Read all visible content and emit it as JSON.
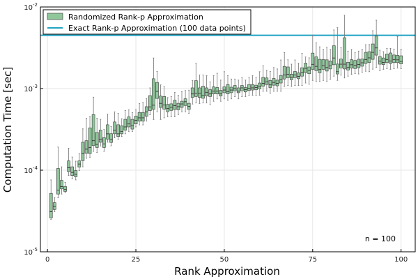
{
  "chart_data": {
    "type": "box",
    "xlabel": "Rank Approximation",
    "ylabel": "Computation Time [sec]",
    "xlim": [
      -2,
      104
    ],
    "ylim": [
      1e-05,
      0.01
    ],
    "yscale": "log",
    "grid": true,
    "x_ticks": [
      0,
      25,
      50,
      75,
      100
    ],
    "y_ticks": [
      {
        "value": 1e-05,
        "base": "10",
        "exp": "-5"
      },
      {
        "value": 0.0001,
        "base": "10",
        "exp": "-4"
      },
      {
        "value": 0.001,
        "base": "10",
        "exp": "-3"
      },
      {
        "value": 0.01,
        "base": "10",
        "exp": "-2"
      }
    ],
    "legend": {
      "placement": "top-left",
      "entries": [
        {
          "label": "Randomized Rank-p Approximation",
          "color": "#8fc79a",
          "kind": "box"
        },
        {
          "label": "Exact Rank-p Approximation (100 data points)",
          "color": "#1fa3c4",
          "kind": "line"
        }
      ]
    },
    "annotation": "n = 100",
    "exact_time": 0.0045,
    "series": [
      {
        "name": "Randomized Rank-p Approximation",
        "color": "#8fc79a",
        "x": [
          1,
          2,
          3,
          4,
          5,
          6,
          7,
          8,
          9,
          10,
          11,
          12,
          13,
          14,
          15,
          16,
          17,
          18,
          19,
          20,
          21,
          22,
          23,
          24,
          25,
          26,
          27,
          28,
          29,
          30,
          31,
          32,
          33,
          34,
          35,
          36,
          37,
          38,
          39,
          40,
          41,
          42,
          43,
          44,
          45,
          46,
          47,
          48,
          49,
          50,
          51,
          52,
          53,
          54,
          55,
          56,
          57,
          58,
          59,
          60,
          61,
          62,
          63,
          64,
          65,
          66,
          67,
          68,
          69,
          70,
          71,
          72,
          73,
          74,
          75,
          76,
          77,
          78,
          79,
          80,
          81,
          82,
          83,
          84,
          85,
          86,
          87,
          88,
          89,
          90,
          91,
          92,
          93,
          94,
          95,
          96,
          97,
          98,
          99,
          100
        ],
        "median": [
          3.1e-05,
          3.6e-05,
          5.7e-05,
          6.3e-05,
          5.8e-05,
          0.000107,
          9.4e-05,
          8.9e-05,
          0.000119,
          0.00016,
          0.000181,
          0.00019,
          0.00023,
          0.000207,
          0.00024,
          0.00021,
          0.000279,
          0.000239,
          0.000309,
          0.000279,
          0.000299,
          0.000339,
          0.000369,
          0.000349,
          0.000408,
          0.000438,
          0.000438,
          0.000518,
          0.000597,
          0.000626,
          0.000925,
          0.000659,
          0.000629,
          0.000569,
          0.00059,
          0.000617,
          0.0006,
          0.000648,
          0.00069,
          0.000604,
          0.00086,
          0.000878,
          0.00088,
          0.000821,
          0.0009,
          0.00086,
          0.00093,
          0.00093,
          0.00086,
          0.00096,
          0.00092,
          0.00096,
          0.001,
          0.00093,
          0.00102,
          0.00097,
          0.00101,
          0.00102,
          0.00103,
          0.00107,
          0.00116,
          0.00121,
          0.00111,
          0.00119,
          0.00116,
          0.00129,
          0.00147,
          0.0015,
          0.00137,
          0.00147,
          0.00141,
          0.00157,
          0.00177,
          0.00167,
          0.00198,
          0.00187,
          0.00171,
          0.00191,
          0.00181,
          0.0019,
          0.00237,
          0.00161,
          0.00199,
          0.00199,
          0.00181,
          0.00196,
          0.00192,
          0.00197,
          0.00207,
          0.00227,
          0.00238,
          0.00278,
          0.00315,
          0.00217,
          0.00209,
          0.00227,
          0.00218,
          0.00227,
          0.00225,
          0.00215
        ],
        "q1": [
          2.6e-05,
          3.3e-05,
          5.1e-05,
          5.9e-05,
          5.5e-05,
          9.6e-05,
          8.6e-05,
          8.3e-05,
          0.000109,
          0.000131,
          0.000161,
          0.00016,
          0.0002,
          0.00019,
          0.00022,
          0.00019,
          0.00024,
          0.000219,
          0.000279,
          0.000259,
          0.000279,
          0.000309,
          0.000339,
          0.000319,
          0.000369,
          0.000399,
          0.000399,
          0.000458,
          0.000538,
          0.000557,
          0.000757,
          0.000587,
          0.00056,
          0.00052,
          0.00054,
          0.000554,
          0.00055,
          0.000588,
          0.00062,
          0.000557,
          0.000778,
          0.0008,
          0.00078,
          0.00076,
          0.00081,
          0.0008,
          0.00086,
          0.00086,
          0.00081,
          0.00089,
          0.00086,
          0.00089,
          0.00094,
          0.00089,
          0.00094,
          0.00091,
          0.00095,
          0.00096,
          0.00097,
          0.00099,
          0.00107,
          0.00112,
          0.00103,
          0.0011,
          0.00108,
          0.00117,
          0.00131,
          0.00136,
          0.00128,
          0.00136,
          0.00132,
          0.00142,
          0.00157,
          0.00152,
          0.00172,
          0.00166,
          0.00156,
          0.00172,
          0.00164,
          0.00174,
          0.00196,
          0.00151,
          0.00179,
          0.00174,
          0.00169,
          0.00178,
          0.00176,
          0.0018,
          0.00188,
          0.00203,
          0.00209,
          0.00228,
          0.00257,
          0.00199,
          0.00197,
          0.00208,
          0.00203,
          0.00208,
          0.00208,
          0.00201
        ],
        "q3": [
          5.2e-05,
          4e-05,
          0.000105,
          7.5e-05,
          6.3e-05,
          0.00013,
          0.00011,
          9.9e-05,
          0.00013,
          0.00022,
          0.00023,
          0.00033,
          0.00048,
          0.00029,
          0.00031,
          0.00025,
          0.00036,
          0.00028,
          0.00039,
          0.00036,
          0.00035,
          0.00042,
          0.00045,
          0.00042,
          0.00046,
          0.00051,
          0.00051,
          0.0006,
          0.00082,
          0.00132,
          0.00119,
          0.00081,
          0.0008,
          0.00064,
          0.00065,
          0.00072,
          0.00066,
          0.0007,
          0.00075,
          0.00066,
          0.00102,
          0.00125,
          0.00102,
          0.00107,
          0.00102,
          0.00097,
          0.00105,
          0.00103,
          0.00095,
          0.00105,
          0.00112,
          0.00104,
          0.00109,
          0.00102,
          0.00109,
          0.00103,
          0.00112,
          0.00112,
          0.0011,
          0.00117,
          0.00137,
          0.00135,
          0.00126,
          0.00133,
          0.00127,
          0.00145,
          0.00187,
          0.00184,
          0.0015,
          0.00162,
          0.00156,
          0.0018,
          0.00205,
          0.00184,
          0.00272,
          0.00245,
          0.00228,
          0.00227,
          0.00225,
          0.00218,
          0.00335,
          0.002,
          0.0023,
          0.0042,
          0.0021,
          0.00226,
          0.00221,
          0.00229,
          0.0023,
          0.00278,
          0.00283,
          0.00352,
          0.0044,
          0.00247,
          0.00237,
          0.00265,
          0.00273,
          0.00258,
          0.00255,
          0.00252
        ],
        "whisker_low": [
          2.5e-05,
          3.1e-05,
          4.6e-05,
          5.1e-05,
          5.3e-05,
          8.6e-05,
          7.8e-05,
          7.6e-05,
          9.9e-05,
          0.00011,
          0.00014,
          0.000143,
          0.00017,
          0.000165,
          0.000198,
          0.00017,
          0.00022,
          0.000199,
          0.000249,
          0.000239,
          0.000259,
          0.000279,
          0.000299,
          0.000299,
          0.000339,
          0.000359,
          0.000359,
          0.000399,
          0.000478,
          0.000418,
          0.00052,
          0.000418,
          0.000438,
          0.00045,
          0.00045,
          0.00045,
          0.00048,
          0.000518,
          0.000518,
          0.000498,
          0.000646,
          0.000666,
          0.000656,
          0.000666,
          0.000666,
          0.000636,
          0.000699,
          0.000748,
          0.000699,
          0.000748,
          0.000717,
          0.000748,
          0.000798,
          0.000748,
          0.000798,
          0.000798,
          0.000828,
          0.000828,
          0.000828,
          0.000828,
          0.000927,
          0.000927,
          0.000877,
          0.000927,
          0.000927,
          0.000927,
          0.00106,
          0.00109,
          0.00106,
          0.00109,
          0.00109,
          0.00109,
          0.00117,
          0.00113,
          0.00126,
          0.00122,
          0.00122,
          0.00126,
          0.00122,
          0.0013,
          0.00142,
          0.00126,
          0.00146,
          0.00135,
          0.00142,
          0.00149,
          0.00153,
          0.00151,
          0.00159,
          0.00163,
          0.00161,
          0.00173,
          0.00182,
          0.00165,
          0.00172,
          0.00175,
          0.00172,
          0.00175,
          0.00178,
          0.00175
        ],
        "whisker_high": [
          7.6e-05,
          4.6e-05,
          0.000192,
          0.00011,
          7.1e-05,
          0.000186,
          0.000145,
          0.000129,
          0.00016,
          0.000321,
          0.000433,
          0.000455,
          0.000785,
          0.000434,
          0.00042,
          0.000315,
          0.000487,
          0.000343,
          0.000519,
          0.000496,
          0.000427,
          0.000539,
          0.000549,
          0.000509,
          0.000549,
          0.000657,
          0.000677,
          0.000757,
          0.00102,
          0.00237,
          0.00162,
          0.00111,
          0.00106,
          0.000777,
          0.000797,
          0.000897,
          0.000827,
          0.000917,
          0.000947,
          0.000957,
          0.00126,
          0.00205,
          0.00147,
          0.00147,
          0.00144,
          0.00121,
          0.00144,
          0.00154,
          0.00127,
          0.00161,
          0.00144,
          0.00131,
          0.00131,
          0.00127,
          0.00137,
          0.00127,
          0.00137,
          0.00144,
          0.00137,
          0.00161,
          0.00191,
          0.00168,
          0.00162,
          0.00181,
          0.00174,
          0.00224,
          0.00276,
          0.00225,
          0.00199,
          0.00224,
          0.00205,
          0.00271,
          0.00244,
          0.00238,
          0.0045,
          0.00364,
          0.00325,
          0.00302,
          0.00321,
          0.00302,
          0.00523,
          0.00558,
          0.00318,
          0.00793,
          0.00288,
          0.00302,
          0.00275,
          0.00288,
          0.00302,
          0.00345,
          0.00346,
          0.00512,
          0.00689,
          0.00295,
          0.00284,
          0.00311,
          0.00311,
          0.00305,
          0.00435,
          0.00304
        ]
      }
    ]
  }
}
